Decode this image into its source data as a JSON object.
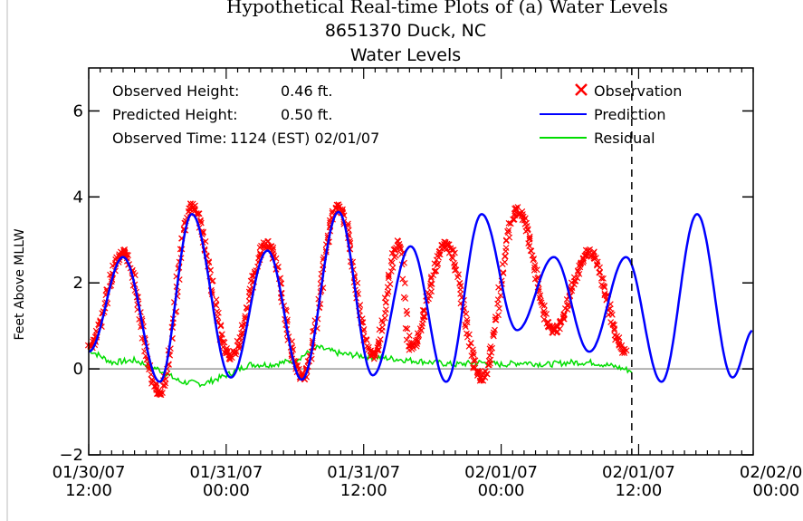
{
  "header": {
    "top_line": "Hypothetical Real-time Plots of (a) Water Levels"
  },
  "chart_data": {
    "type": "line",
    "title": "8651370 Duck, NC",
    "subtitle": "Water Levels",
    "ylabel": "Feet Above MLLW",
    "xlabel": "",
    "ylim": [
      -2,
      7
    ],
    "y_ticks": [
      -2,
      0,
      2,
      4,
      6
    ],
    "x_tick_labels": [
      {
        "date": "01/30/07",
        "time": "12:00"
      },
      {
        "date": "01/31/07",
        "time": "00:00"
      },
      {
        "date": "01/31/07",
        "time": "12:00"
      },
      {
        "date": "02/01/07",
        "time": "00:00"
      },
      {
        "date": "02/01/07",
        "time": "12:00"
      },
      {
        "date": "02/02/07",
        "time": "00:00"
      }
    ],
    "x_hours_range": [
      0,
      58
    ],
    "current_time_hours": 47.4,
    "info": [
      {
        "label": "Observed Height:",
        "value": "0.46 ft."
      },
      {
        "label": "Predicted Height:",
        "value": "0.50 ft."
      },
      {
        "label": "Observed Time:",
        "value": "1124 (EST) 02/01/07"
      }
    ],
    "legend": [
      {
        "name": "Observation",
        "color": "#ff0000",
        "marker": "x"
      },
      {
        "name": "Prediction",
        "color": "#0000ff",
        "marker": "line"
      },
      {
        "name": "Residual",
        "color": "#00dd00",
        "marker": "line"
      }
    ],
    "legend_position": "top-right",
    "zero_line_color": "#999999",
    "series": [
      {
        "name": "Prediction",
        "color": "#0000ff",
        "x_hours": [
          0,
          3,
          6.2,
          9,
          12.4,
          15.6,
          18.6,
          21.8,
          24.8,
          28.1,
          31.2,
          34.3,
          37.4,
          40.6,
          43.7,
          46.9,
          50,
          53.1,
          56.2,
          58
        ],
        "y_feet": [
          0.4,
          2.6,
          -0.3,
          3.6,
          -0.2,
          2.75,
          -0.25,
          3.65,
          -0.15,
          2.85,
          -0.3,
          3.6,
          0.9,
          2.6,
          0.4,
          2.6,
          -0.3,
          3.6,
          -0.2,
          0.9
        ]
      },
      {
        "name": "Observation",
        "color": "#ff0000",
        "x_hours": [
          0,
          3,
          6.2,
          9,
          12.4,
          15.6,
          18.6,
          21.8,
          24.8,
          27.1,
          28.1,
          31.2,
          34.3,
          37.4,
          40.6,
          43.7,
          46.9
        ],
        "y_feet": [
          0.5,
          2.7,
          -0.55,
          3.8,
          0.3,
          2.9,
          -0.2,
          3.75,
          0.3,
          2.9,
          0.5,
          2.9,
          -0.2,
          3.7,
          0.9,
          2.7,
          0.4
        ]
      },
      {
        "name": "Residual",
        "color": "#00dd00",
        "x_hours": [
          0,
          2,
          4,
          6,
          8,
          10,
          12,
          14,
          16,
          18,
          20,
          22,
          24,
          26,
          28,
          30,
          32,
          34,
          36,
          38,
          40,
          42,
          44,
          46,
          47.4
        ],
        "y_feet": [
          0.45,
          0.15,
          0.2,
          0.0,
          -0.3,
          -0.35,
          -0.15,
          0.1,
          0.1,
          0.2,
          0.5,
          0.35,
          0.3,
          0.25,
          0.2,
          0.15,
          0.1,
          0.15,
          0.1,
          0.15,
          0.1,
          0.15,
          0.15,
          0.05,
          -0.05
        ]
      }
    ]
  }
}
